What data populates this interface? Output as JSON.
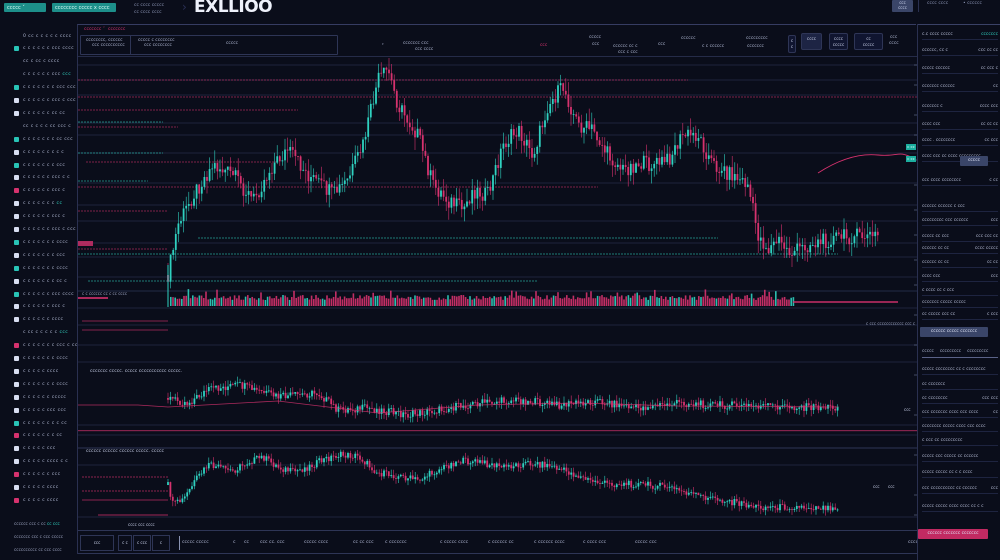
{
  "app": {
    "brand": "EXLLIOO",
    "topbar": {
      "selector_1": "ccccc  ˅",
      "selector_2": "cccccccc ccccc x cccc",
      "info_line_1": "cc cccc ccccc",
      "info_line_2": "cc cccc cccc",
      "right_button_top": "ccc",
      "right_button_bottom": "cccc",
      "right_info_1": "cccc cccc",
      "right_info_2": "• cccccc"
    }
  },
  "sidebar": {
    "items": [
      {
        "icon": "none",
        "label": "0 cc c c c c c cccc"
      },
      {
        "icon": "teal",
        "label": "c c c c c c ccc cccc"
      },
      {
        "icon": "none",
        "label": "cc c cc c cccc"
      },
      {
        "icon": "none",
        "label": "c c c c c c ccc",
        "hl": "ccc"
      },
      {
        "icon": "teal",
        "label": "c c c c c c c ccc ccc"
      },
      {
        "icon": "white",
        "label": "c c c c c c ccc c ccc"
      },
      {
        "icon": "white",
        "label": "c c c c c c cc cc"
      },
      {
        "icon": "none",
        "label": "cc c c c c cc ccc c"
      },
      {
        "icon": "teal",
        "label": "c c c c c c c cc ccc"
      },
      {
        "icon": "white",
        "label": "c c c c c c c c c"
      },
      {
        "icon": "teal",
        "label": "c c c c c c c ccc"
      },
      {
        "icon": "white",
        "label": "c c c c c c ccc c c"
      },
      {
        "icon": "pink",
        "label": "c c c c c c ccc c"
      },
      {
        "icon": "white",
        "label": "c c c c c c c",
        "hl": "cc"
      },
      {
        "icon": "white",
        "label": "c c c c c c ccc c"
      },
      {
        "icon": "white",
        "label": "c c c c c c ccc c ccc"
      },
      {
        "icon": "teal",
        "label": "c c c c c c c cccc"
      },
      {
        "icon": "white",
        "label": "c c c c c c c ccc"
      },
      {
        "icon": "teal",
        "label": "c c c c c c c cccc"
      },
      {
        "icon": "white",
        "label": "c c c c c c c cc c"
      },
      {
        "icon": "teal",
        "label": "c c c c c c ccc cccc"
      },
      {
        "icon": "white",
        "label": "c c c c c c ccc c"
      },
      {
        "icon": "white",
        "label": "c c c c c c cccc"
      },
      {
        "icon": "none",
        "label": "c cc c c c c c",
        "hl": "ccc"
      },
      {
        "icon": "pink",
        "label": "c c c c c c c ccc c cc"
      },
      {
        "icon": "white",
        "label": "c c c c c c c cccc"
      },
      {
        "icon": "white",
        "label": "c c c c c cccc"
      },
      {
        "icon": "white",
        "label": "c c c c c c c cccc"
      },
      {
        "icon": "white",
        "label": "c c c c c c ccccc"
      },
      {
        "icon": "white",
        "label": "c c c c c ccc ccc"
      },
      {
        "icon": "teal",
        "label": "c c c c c c c c cc"
      },
      {
        "icon": "pink",
        "label": "c c c c c c c cc"
      },
      {
        "icon": "white",
        "label": "c c c c c ccc"
      },
      {
        "icon": "white",
        "label": "c c c c c cccc c c"
      },
      {
        "icon": "pink",
        "label": "c c c c c c ccc"
      },
      {
        "icon": "white",
        "label": "c c c c c cccc"
      },
      {
        "icon": "pink",
        "label": "c c c c c cccc"
      }
    ],
    "footer": [
      {
        "label": "cccccc ccc c cc",
        "hl": "cc ccc"
      },
      {
        "label": "ccccccc ccc c ccc ccccc"
      },
      {
        "label": "cccccccccc cc ccc cccc"
      }
    ]
  },
  "main_panel": {
    "header": {
      "tabs": [
        "ccccccc ˅",
        "ccccccc"
      ],
      "cell_1": {
        "line1": "cccccccc, cccccc",
        "line2": "ccc cccccccccc"
      },
      "cell_2": {
        "line1": "ccccc c cccccccc",
        "line2": "ccc cccccccc"
      },
      "cell_3": "ccccc",
      "mid_values": [
        {
          "line1": "ccccccc ccc",
          "line2": "ccc cccc"
        },
        {
          "line1": "ccc",
          "pink": true
        },
        {
          "line1": "ccccc",
          "line2": "ccc"
        },
        {
          "line1": "cccccc cc c",
          "line2": "ccc c ccc"
        },
        {
          "line1": "ccc"
        },
        {
          "line1": "cccccc",
          "line2": "c c cccccc"
        },
        {
          "line1": "ccccccccc",
          "line2": "ccccccc"
        }
      ],
      "buttons": [
        {
          "top": "c",
          "bottom": "c"
        },
        {
          "top": "cccc",
          "bottom": ""
        },
        {
          "top": "cccc",
          "bottom": "ccccc"
        },
        {
          "top": "cc",
          "bottom": "ccccc"
        },
        {
          "top": "ccc",
          "bottom": "cccc"
        }
      ]
    },
    "price_tags": [
      "c cc",
      "c cc"
    ],
    "volume_label": "c c  cccccc    cc c cc cccc",
    "indicator_1_title": "ccccccc ccccc. ccccc ccccccccccc ccccc.",
    "indicator_1_badge": "ccc",
    "indicator_2_title": "cccccc cccccc cccccc ccccc. ccccc",
    "indicator_2_note": "cccc ccc cccc",
    "indicator_2_badges": [
      "ccc",
      "ccc"
    ],
    "side_legend": "c ccc   cccccccccccc  ccc c"
  },
  "bottom_toolbar": {
    "box_1": "ccc",
    "box_2": "c c",
    "box_3": "c ccc",
    "box_4": "c",
    "items": [
      "ccccc ccccc",
      "c",
      "cc",
      "ccc cc. ccc",
      "ccccc cccc",
      "cc cc ccc",
      "c ccccccc",
      "c ccccc cccc",
      "c cccccc cc",
      "c cccccc cccc",
      "c cccc ccc",
      "ccccc ccc",
      "cccc"
    ]
  },
  "right_panel": {
    "rows_top": [
      {
        "left": "c.c cccc ccccc",
        "right": "ccccccc",
        "right_hl": true
      },
      {
        "left": "cccccc, cc c",
        "right": "ccc  cc cc"
      },
      {
        "left": "ccccc cccccc",
        "right": "cc  ccc c",
        "mid_hl": true
      },
      {
        "left": "ccccccc cccccc",
        "right": "cc"
      },
      {
        "left": "ccccccc   c",
        "right": "cccc  ccc"
      },
      {
        "left": "cccc ccc",
        "right": "cc   cc cc"
      },
      {
        "left": "cccc . cccccccc",
        "right": "cc   ccc"
      },
      {
        "left": "cccc ccc cc cccc ccccccccc",
        "right": ""
      }
    ],
    "open_button": "ccccc",
    "rows_mid": [
      {
        "left": "ccc cccc cccccccc",
        "right": "c  cc"
      },
      {
        "left": "cccccc cccccc c ccc",
        "right": ""
      },
      {
        "left": "ccccccccc ccc cccccc",
        "right": "ccc"
      },
      {
        "left": "ccccc cc ccc",
        "right": "ccc ccc  cc"
      },
      {
        "left": "cccccc cc   cc",
        "right": "cccc  ccccc"
      },
      {
        "left": "cccccc cc  cc",
        "right": "cc cc"
      },
      {
        "left": "cccc ccc",
        "right": "ccc"
      },
      {
        "left": "c cccc  cc c ccc",
        "right": ""
      },
      {
        "left": "ccccccc ccccc ccccc",
        "right": ""
      },
      {
        "left": "cc ccccc ccc cc",
        "right": "c ccc"
      }
    ],
    "action_button_slate": "cccccc ccccc ccccccc",
    "tabs": [
      "ccccc",
      "ccccccccc",
      "ccccccccc"
    ],
    "rows_bottom": [
      {
        "left": "ccccc cccccccc cc c cccccccc",
        "right": ""
      },
      {
        "left": "cc ccccccc",
        "right": ""
      },
      {
        "left": "cc cccccccc",
        "right": "ccc ccc"
      },
      {
        "left": "ccc ccccccc cccc ccc cccc",
        "right": "cc"
      },
      {
        "left": "cccccccc ccccc cccc ccc cccc",
        "right": ""
      },
      {
        "left": "c ccc cc ccccccccc",
        "right": ""
      },
      {
        "left": "ccccc ccc ccccc cc cccccc",
        "right": ""
      },
      {
        "left": "ccccc ccccc cc c c cccc",
        "right": ""
      },
      {
        "left": "ccc cccccccccc cc cccccc",
        "right": "ccc"
      },
      {
        "left": "ccccc ccccc cccc  cccc cc c c",
        "right": ""
      }
    ],
    "action_button_pink": "cccccc ccccccc ccccccc"
  },
  "colors": {
    "background": "#0a0d1a",
    "bull": "#2fd1c0",
    "bear": "#d6326e",
    "grid": "#262c48",
    "panel_border": "#2e3556",
    "button_slate": "#3a4568",
    "button_pink": "#c22a62"
  }
}
